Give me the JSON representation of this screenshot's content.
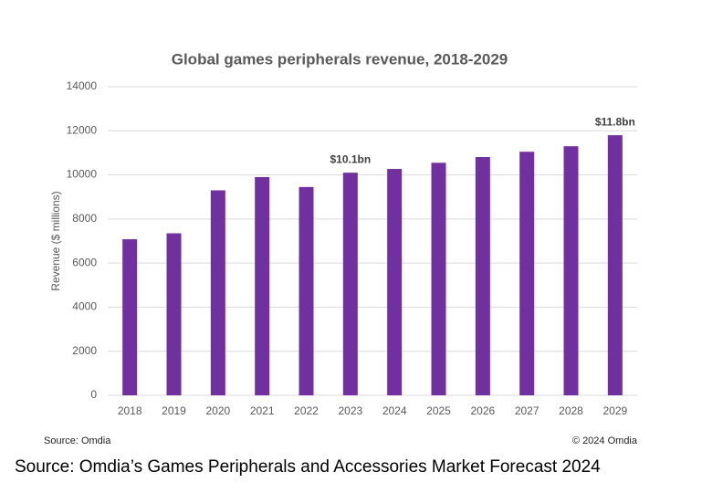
{
  "chart_data": {
    "type": "bar",
    "title": "Global games peripherals revenue, 2018-2029",
    "y_label": "Revenue ($ millions)",
    "categories": [
      "2018",
      "2019",
      "2020",
      "2021",
      "2022",
      "2023",
      "2024",
      "2025",
      "2026",
      "2027",
      "2028",
      "2029"
    ],
    "values": [
      7080,
      7350,
      9300,
      9900,
      9450,
      10100,
      10270,
      10550,
      10810,
      11050,
      11300,
      11800
    ],
    "value_labels": [
      null,
      null,
      null,
      null,
      null,
      "$10.1bn",
      null,
      null,
      null,
      null,
      null,
      "$11.8bn"
    ],
    "color": "#7030a0",
    "ylim": [
      0,
      14000
    ],
    "yticks": [
      0,
      2000,
      4000,
      6000,
      8000,
      10000,
      12000,
      14000
    ],
    "grid": true,
    "source_note": "Source: Omdia",
    "copyright": "© 2024 Omdia"
  },
  "caption": "Source: Omdia’s Games Peripherals and Accessories Market Forecast 2024"
}
